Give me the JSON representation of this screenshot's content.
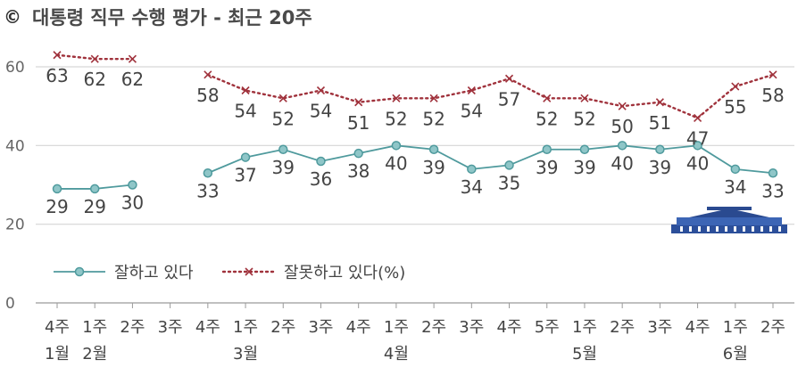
{
  "header": {
    "mark": "©",
    "title": "대통령 직무 수행 평가 - 최근 20주"
  },
  "chart_data": {
    "type": "line",
    "title": "대통령 직무 수행 평가 - 최근 20주",
    "ylim": [
      0,
      60
    ],
    "yticks": [
      0,
      20,
      40,
      60
    ],
    "grid": true,
    "legend_position": "bottom-left",
    "categories": [
      "4주",
      "1주",
      "2주",
      "3주",
      "4주",
      "1주",
      "2주",
      "3주",
      "4주",
      "1주",
      "2주",
      "3주",
      "4주",
      "5주",
      "1주",
      "2주",
      "3주",
      "4주",
      "1주",
      "2주"
    ],
    "month_labels": [
      {
        "index": 0,
        "label": "1월"
      },
      {
        "index": 1,
        "label": "2월"
      },
      {
        "index": 5,
        "label": "3월"
      },
      {
        "index": 9,
        "label": "4월"
      },
      {
        "index": 14,
        "label": "5월"
      },
      {
        "index": 18,
        "label": "6월"
      }
    ],
    "series": [
      {
        "name": "잘하고 있다",
        "color": "#4f9a9d",
        "style": "solid-circle",
        "values": [
          29,
          29,
          30,
          null,
          33,
          37,
          39,
          36,
          38,
          40,
          39,
          34,
          35,
          39,
          39,
          40,
          39,
          40,
          34,
          33
        ]
      },
      {
        "name": "잘못하고 있다(%)",
        "color": "#a0323c",
        "style": "dotted-x",
        "values": [
          63,
          62,
          62,
          null,
          58,
          54,
          52,
          54,
          51,
          52,
          52,
          54,
          57,
          52,
          52,
          50,
          51,
          47,
          55,
          58
        ]
      }
    ]
  }
}
